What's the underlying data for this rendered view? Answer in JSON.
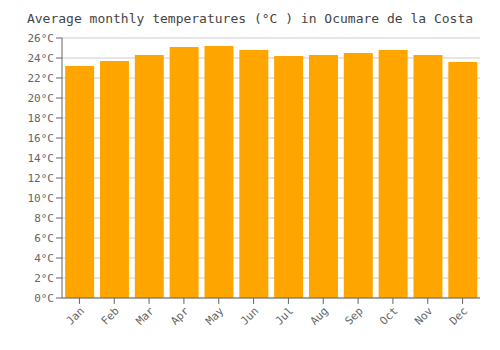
{
  "chart_data": {
    "type": "bar",
    "title": "Average monthly temperatures (°C ) in Ocumare de la Costa",
    "categories": [
      "Jan",
      "Feb",
      "Mar",
      "Apr",
      "May",
      "Jun",
      "Jul",
      "Aug",
      "Sep",
      "Oct",
      "Nov",
      "Dec"
    ],
    "values": [
      23.2,
      23.7,
      24.3,
      25.1,
      25.2,
      24.8,
      24.2,
      24.3,
      24.5,
      24.8,
      24.3,
      23.6
    ],
    "color": "#FFA500",
    "ylim": [
      0,
      26
    ],
    "yticks": [
      {
        "value": 0,
        "label": "0°C"
      },
      {
        "value": 2,
        "label": "2°C"
      },
      {
        "value": 4,
        "label": "4°C"
      },
      {
        "value": 6,
        "label": "6°C"
      },
      {
        "value": 8,
        "label": "8°C"
      },
      {
        "value": 10,
        "label": "10°C"
      },
      {
        "value": 12,
        "label": "12°C"
      },
      {
        "value": 14,
        "label": "14°C"
      },
      {
        "value": 16,
        "label": "16°C"
      },
      {
        "value": 18,
        "label": "18°C"
      },
      {
        "value": 20,
        "label": "20°C"
      },
      {
        "value": 22,
        "label": "22°C"
      },
      {
        "value": 24,
        "label": "24°C"
      },
      {
        "value": 26,
        "label": "26°C"
      }
    ],
    "grid": true
  }
}
